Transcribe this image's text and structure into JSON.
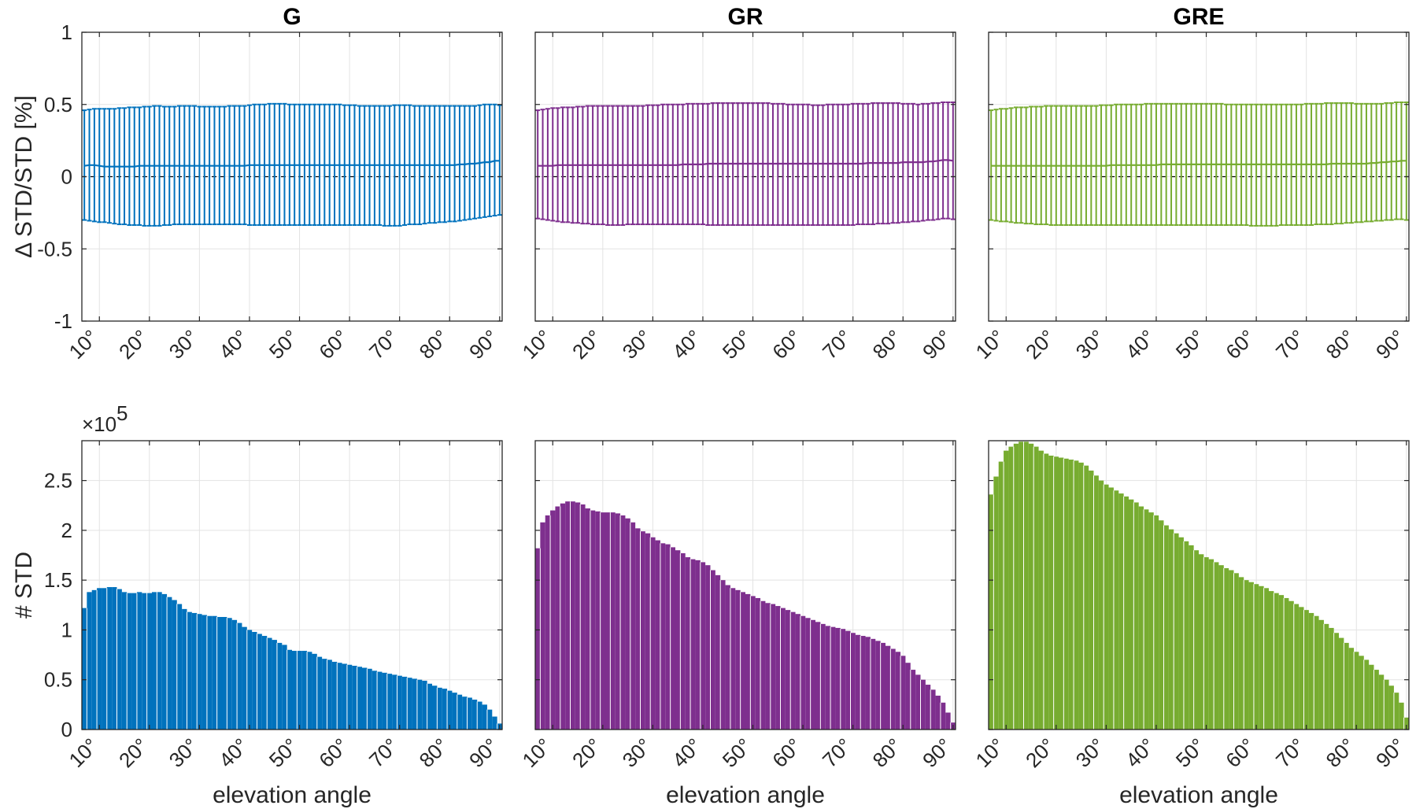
{
  "colors": {
    "G": "#0072bd",
    "GR": "#7e2f8e",
    "GRE": "#77ac30",
    "grid": "#e3e3e3",
    "axes": "#262626",
    "zero_line": "#000000"
  },
  "x_tick_labels": [
    "10°",
    "20°",
    "30°",
    "40°",
    "50°",
    "60°",
    "70°",
    "80°",
    "90°"
  ],
  "chart_data": [
    {
      "panel": "G-top",
      "type": "errorbar",
      "title": "G",
      "ylabel": "Δ STD/STD [%]",
      "xlabel": "",
      "xlim": [
        6.5,
        90.5
      ],
      "ylim": [
        -1,
        1
      ],
      "y_ticks": [
        "-1",
        "-0.5",
        "0",
        "0.5",
        "1"
      ],
      "grid": true,
      "zero_line": "dashed",
      "mean": [
        0.075,
        0.08,
        0.08,
        0.075,
        0.07,
        0.07,
        0.07,
        0.07,
        0.07,
        0.07,
        0.07,
        0.075,
        0.075,
        0.075,
        0.075,
        0.075,
        0.075,
        0.075,
        0.075,
        0.075,
        0.075,
        0.075,
        0.075,
        0.075,
        0.075,
        0.075,
        0.075,
        0.075,
        0.075,
        0.075,
        0.075,
        0.075,
        0.075,
        0.08,
        0.08,
        0.08,
        0.08,
        0.08,
        0.08,
        0.08,
        0.08,
        0.08,
        0.08,
        0.08,
        0.08,
        0.08,
        0.08,
        0.08,
        0.08,
        0.08,
        0.08,
        0.08,
        0.08,
        0.08,
        0.08,
        0.08,
        0.08,
        0.08,
        0.08,
        0.08,
        0.08,
        0.08,
        0.08,
        0.08,
        0.08,
        0.08,
        0.08,
        0.08,
        0.08,
        0.08,
        0.08,
        0.08,
        0.08,
        0.08,
        0.08,
        0.085,
        0.085,
        0.09,
        0.09,
        0.095,
        0.1,
        0.1,
        0.11,
        0.11
      ],
      "upper": [
        0.46,
        0.465,
        0.47,
        0.47,
        0.47,
        0.47,
        0.47,
        0.475,
        0.475,
        0.48,
        0.48,
        0.48,
        0.485,
        0.485,
        0.49,
        0.49,
        0.485,
        0.485,
        0.485,
        0.49,
        0.49,
        0.49,
        0.49,
        0.485,
        0.485,
        0.485,
        0.485,
        0.485,
        0.485,
        0.49,
        0.49,
        0.49,
        0.49,
        0.495,
        0.5,
        0.5,
        0.5,
        0.505,
        0.505,
        0.505,
        0.505,
        0.5,
        0.5,
        0.5,
        0.5,
        0.5,
        0.5,
        0.5,
        0.5,
        0.5,
        0.5,
        0.5,
        0.495,
        0.495,
        0.495,
        0.49,
        0.49,
        0.49,
        0.49,
        0.49,
        0.49,
        0.49,
        0.495,
        0.495,
        0.495,
        0.495,
        0.49,
        0.49,
        0.49,
        0.49,
        0.49,
        0.49,
        0.49,
        0.49,
        0.49,
        0.49,
        0.49,
        0.49,
        0.49,
        0.495,
        0.5,
        0.5,
        0.5,
        0.495
      ],
      "lower": [
        -0.3,
        -0.305,
        -0.31,
        -0.315,
        -0.315,
        -0.32,
        -0.325,
        -0.33,
        -0.33,
        -0.335,
        -0.335,
        -0.335,
        -0.34,
        -0.34,
        -0.34,
        -0.34,
        -0.335,
        -0.335,
        -0.33,
        -0.33,
        -0.33,
        -0.33,
        -0.33,
        -0.33,
        -0.33,
        -0.33,
        -0.33,
        -0.33,
        -0.33,
        -0.33,
        -0.33,
        -0.33,
        -0.33,
        -0.335,
        -0.335,
        -0.335,
        -0.335,
        -0.335,
        -0.335,
        -0.335,
        -0.335,
        -0.335,
        -0.335,
        -0.335,
        -0.335,
        -0.335,
        -0.335,
        -0.335,
        -0.335,
        -0.335,
        -0.335,
        -0.335,
        -0.335,
        -0.335,
        -0.335,
        -0.335,
        -0.335,
        -0.335,
        -0.335,
        -0.335,
        -0.34,
        -0.34,
        -0.34,
        -0.34,
        -0.335,
        -0.33,
        -0.33,
        -0.33,
        -0.325,
        -0.32,
        -0.32,
        -0.315,
        -0.315,
        -0.31,
        -0.31,
        -0.305,
        -0.3,
        -0.295,
        -0.29,
        -0.285,
        -0.28,
        -0.275,
        -0.27,
        -0.265
      ]
    },
    {
      "panel": "GR-top",
      "type": "errorbar",
      "title": "GR",
      "xlabel": "",
      "xlim": [
        6.5,
        90.5
      ],
      "ylim": [
        -1,
        1
      ],
      "grid": true,
      "zero_line": "dashed",
      "mean": [
        0.075,
        0.075,
        0.075,
        0.075,
        0.08,
        0.08,
        0.08,
        0.08,
        0.08,
        0.08,
        0.08,
        0.08,
        0.08,
        0.08,
        0.08,
        0.08,
        0.08,
        0.08,
        0.08,
        0.08,
        0.08,
        0.08,
        0.08,
        0.08,
        0.08,
        0.08,
        0.08,
        0.08,
        0.08,
        0.085,
        0.085,
        0.085,
        0.085,
        0.085,
        0.09,
        0.09,
        0.09,
        0.09,
        0.09,
        0.09,
        0.09,
        0.09,
        0.09,
        0.09,
        0.09,
        0.09,
        0.09,
        0.09,
        0.09,
        0.09,
        0.09,
        0.09,
        0.09,
        0.09,
        0.09,
        0.09,
        0.09,
        0.09,
        0.09,
        0.09,
        0.09,
        0.09,
        0.09,
        0.09,
        0.09,
        0.09,
        0.095,
        0.095,
        0.095,
        0.095,
        0.095,
        0.095,
        0.095,
        0.1,
        0.1,
        0.1,
        0.1,
        0.1,
        0.105,
        0.105,
        0.11,
        0.115,
        0.115,
        0.11
      ],
      "upper": [
        0.46,
        0.465,
        0.47,
        0.475,
        0.475,
        0.48,
        0.48,
        0.48,
        0.485,
        0.485,
        0.49,
        0.49,
        0.49,
        0.49,
        0.49,
        0.49,
        0.49,
        0.49,
        0.49,
        0.49,
        0.49,
        0.49,
        0.495,
        0.495,
        0.495,
        0.5,
        0.5,
        0.5,
        0.5,
        0.5,
        0.505,
        0.505,
        0.505,
        0.505,
        0.505,
        0.51,
        0.51,
        0.51,
        0.51,
        0.51,
        0.51,
        0.51,
        0.51,
        0.51,
        0.51,
        0.51,
        0.51,
        0.505,
        0.505,
        0.505,
        0.5,
        0.5,
        0.5,
        0.5,
        0.5,
        0.495,
        0.495,
        0.495,
        0.5,
        0.5,
        0.5,
        0.5,
        0.5,
        0.505,
        0.505,
        0.505,
        0.505,
        0.51,
        0.51,
        0.51,
        0.51,
        0.51,
        0.51,
        0.505,
        0.505,
        0.505,
        0.5,
        0.505,
        0.505,
        0.51,
        0.51,
        0.515,
        0.515,
        0.515
      ],
      "lower": [
        -0.29,
        -0.295,
        -0.3,
        -0.305,
        -0.31,
        -0.315,
        -0.315,
        -0.32,
        -0.32,
        -0.325,
        -0.325,
        -0.33,
        -0.33,
        -0.33,
        -0.335,
        -0.335,
        -0.335,
        -0.335,
        -0.33,
        -0.33,
        -0.33,
        -0.33,
        -0.33,
        -0.33,
        -0.33,
        -0.33,
        -0.33,
        -0.33,
        -0.33,
        -0.33,
        -0.33,
        -0.33,
        -0.33,
        -0.33,
        -0.335,
        -0.335,
        -0.335,
        -0.335,
        -0.335,
        -0.335,
        -0.335,
        -0.335,
        -0.335,
        -0.335,
        -0.335,
        -0.335,
        -0.335,
        -0.335,
        -0.335,
        -0.335,
        -0.335,
        -0.335,
        -0.335,
        -0.335,
        -0.335,
        -0.335,
        -0.335,
        -0.335,
        -0.335,
        -0.335,
        -0.335,
        -0.335,
        -0.335,
        -0.335,
        -0.33,
        -0.33,
        -0.33,
        -0.33,
        -0.325,
        -0.325,
        -0.325,
        -0.32,
        -0.32,
        -0.315,
        -0.315,
        -0.31,
        -0.31,
        -0.305,
        -0.3,
        -0.3,
        -0.295,
        -0.29,
        -0.29,
        -0.295
      ]
    },
    {
      "panel": "GRE-top",
      "type": "errorbar",
      "title": "GRE",
      "xlabel": "",
      "xlim": [
        6.5,
        90.5
      ],
      "ylim": [
        -1,
        1
      ],
      "grid": true,
      "zero_line": "dashed",
      "mean": [
        0.075,
        0.075,
        0.075,
        0.075,
        0.075,
        0.075,
        0.075,
        0.075,
        0.075,
        0.075,
        0.075,
        0.075,
        0.075,
        0.075,
        0.075,
        0.075,
        0.075,
        0.075,
        0.075,
        0.075,
        0.075,
        0.075,
        0.075,
        0.075,
        0.08,
        0.08,
        0.08,
        0.08,
        0.08,
        0.08,
        0.08,
        0.08,
        0.08,
        0.08,
        0.085,
        0.085,
        0.085,
        0.085,
        0.085,
        0.085,
        0.085,
        0.085,
        0.085,
        0.085,
        0.085,
        0.085,
        0.085,
        0.085,
        0.085,
        0.085,
        0.085,
        0.085,
        0.085,
        0.085,
        0.085,
        0.085,
        0.085,
        0.085,
        0.085,
        0.085,
        0.085,
        0.085,
        0.085,
        0.085,
        0.085,
        0.085,
        0.085,
        0.085,
        0.09,
        0.09,
        0.09,
        0.09,
        0.09,
        0.09,
        0.09,
        0.09,
        0.095,
        0.095,
        0.1,
        0.1,
        0.105,
        0.105,
        0.11,
        0.11
      ],
      "upper": [
        0.46,
        0.465,
        0.47,
        0.47,
        0.475,
        0.48,
        0.48,
        0.48,
        0.485,
        0.485,
        0.485,
        0.49,
        0.49,
        0.49,
        0.49,
        0.49,
        0.49,
        0.49,
        0.49,
        0.49,
        0.49,
        0.49,
        0.495,
        0.495,
        0.495,
        0.5,
        0.5,
        0.5,
        0.5,
        0.5,
        0.5,
        0.505,
        0.505,
        0.505,
        0.505,
        0.505,
        0.505,
        0.505,
        0.505,
        0.505,
        0.505,
        0.505,
        0.505,
        0.505,
        0.505,
        0.505,
        0.505,
        0.5,
        0.5,
        0.5,
        0.5,
        0.5,
        0.5,
        0.5,
        0.5,
        0.5,
        0.5,
        0.5,
        0.5,
        0.5,
        0.5,
        0.5,
        0.5,
        0.505,
        0.505,
        0.505,
        0.505,
        0.51,
        0.51,
        0.51,
        0.51,
        0.51,
        0.51,
        0.505,
        0.505,
        0.505,
        0.505,
        0.505,
        0.505,
        0.51,
        0.51,
        0.515,
        0.515,
        0.515
      ],
      "lower": [
        -0.3,
        -0.305,
        -0.31,
        -0.31,
        -0.315,
        -0.32,
        -0.32,
        -0.325,
        -0.325,
        -0.33,
        -0.33,
        -0.33,
        -0.335,
        -0.335,
        -0.335,
        -0.335,
        -0.335,
        -0.335,
        -0.335,
        -0.335,
        -0.335,
        -0.335,
        -0.335,
        -0.335,
        -0.335,
        -0.335,
        -0.335,
        -0.335,
        -0.335,
        -0.335,
        -0.335,
        -0.335,
        -0.335,
        -0.335,
        -0.335,
        -0.335,
        -0.335,
        -0.335,
        -0.335,
        -0.335,
        -0.335,
        -0.335,
        -0.335,
        -0.335,
        -0.335,
        -0.335,
        -0.335,
        -0.335,
        -0.335,
        -0.335,
        -0.335,
        -0.335,
        -0.34,
        -0.34,
        -0.34,
        -0.34,
        -0.34,
        -0.34,
        -0.335,
        -0.335,
        -0.335,
        -0.335,
        -0.335,
        -0.335,
        -0.335,
        -0.33,
        -0.33,
        -0.33,
        -0.33,
        -0.325,
        -0.325,
        -0.32,
        -0.32,
        -0.315,
        -0.315,
        -0.31,
        -0.31,
        -0.305,
        -0.305,
        -0.3,
        -0.3,
        -0.295,
        -0.295,
        -0.3
      ]
    },
    {
      "panel": "G-bottom",
      "type": "bar",
      "ylabel": "# STD",
      "xlabel": "elevation angle",
      "y_exponent": "×10",
      "y_exponent_power": "5",
      "xlim": [
        6.5,
        90.5
      ],
      "ylim": [
        0,
        2.9
      ],
      "y_ticks": [
        "0",
        "0.5",
        "1",
        "1.5",
        "2",
        "2.5"
      ],
      "grid": true,
      "values": [
        1.22,
        1.38,
        1.4,
        1.42,
        1.42,
        1.43,
        1.43,
        1.41,
        1.38,
        1.37,
        1.37,
        1.38,
        1.37,
        1.37,
        1.38,
        1.38,
        1.36,
        1.33,
        1.3,
        1.26,
        1.21,
        1.18,
        1.17,
        1.16,
        1.15,
        1.14,
        1.14,
        1.13,
        1.13,
        1.12,
        1.1,
        1.07,
        1.03,
        1.0,
        0.98,
        0.96,
        0.94,
        0.92,
        0.9,
        0.87,
        0.85,
        0.8,
        0.79,
        0.79,
        0.79,
        0.78,
        0.76,
        0.73,
        0.71,
        0.7,
        0.68,
        0.67,
        0.66,
        0.65,
        0.64,
        0.63,
        0.62,
        0.61,
        0.59,
        0.58,
        0.57,
        0.56,
        0.55,
        0.54,
        0.53,
        0.52,
        0.51,
        0.5,
        0.49,
        0.46,
        0.44,
        0.42,
        0.41,
        0.39,
        0.37,
        0.35,
        0.33,
        0.32,
        0.3,
        0.28,
        0.25,
        0.2,
        0.13,
        0.06
      ]
    },
    {
      "panel": "GR-bottom",
      "type": "bar",
      "xlabel": "elevation angle",
      "xlim": [
        6.5,
        90.5
      ],
      "ylim": [
        0,
        2.9
      ],
      "grid": true,
      "values": [
        1.82,
        2.08,
        2.15,
        2.2,
        2.24,
        2.27,
        2.29,
        2.29,
        2.28,
        2.26,
        2.22,
        2.2,
        2.19,
        2.18,
        2.18,
        2.18,
        2.17,
        2.15,
        2.12,
        2.08,
        2.02,
        1.99,
        1.97,
        1.93,
        1.9,
        1.87,
        1.86,
        1.83,
        1.8,
        1.77,
        1.73,
        1.71,
        1.7,
        1.68,
        1.65,
        1.6,
        1.55,
        1.5,
        1.45,
        1.42,
        1.4,
        1.38,
        1.36,
        1.34,
        1.32,
        1.29,
        1.27,
        1.26,
        1.24,
        1.22,
        1.2,
        1.18,
        1.16,
        1.14,
        1.12,
        1.1,
        1.08,
        1.06,
        1.04,
        1.03,
        1.02,
        1.01,
        0.99,
        0.97,
        0.95,
        0.94,
        0.93,
        0.91,
        0.89,
        0.87,
        0.84,
        0.81,
        0.78,
        0.74,
        0.67,
        0.6,
        0.55,
        0.5,
        0.45,
        0.4,
        0.34,
        0.27,
        0.17,
        0.07
      ]
    },
    {
      "panel": "GRE-bottom",
      "type": "bar",
      "xlabel": "elevation angle",
      "xlim": [
        6.5,
        90.5
      ],
      "ylim": [
        0,
        2.9
      ],
      "grid": true,
      "values": [
        2.36,
        2.54,
        2.69,
        2.8,
        2.84,
        2.87,
        2.89,
        2.89,
        2.87,
        2.84,
        2.8,
        2.77,
        2.75,
        2.74,
        2.73,
        2.72,
        2.71,
        2.7,
        2.68,
        2.65,
        2.6,
        2.55,
        2.5,
        2.46,
        2.43,
        2.4,
        2.37,
        2.34,
        2.31,
        2.28,
        2.24,
        2.21,
        2.18,
        2.15,
        2.1,
        2.05,
        2.01,
        1.97,
        1.93,
        1.89,
        1.85,
        1.8,
        1.76,
        1.73,
        1.71,
        1.68,
        1.65,
        1.62,
        1.6,
        1.57,
        1.53,
        1.5,
        1.48,
        1.46,
        1.44,
        1.42,
        1.39,
        1.37,
        1.35,
        1.32,
        1.29,
        1.26,
        1.23,
        1.2,
        1.17,
        1.14,
        1.1,
        1.06,
        1.02,
        0.97,
        0.92,
        0.87,
        0.82,
        0.78,
        0.74,
        0.7,
        0.65,
        0.6,
        0.55,
        0.5,
        0.44,
        0.37,
        0.27,
        0.12
      ]
    }
  ]
}
